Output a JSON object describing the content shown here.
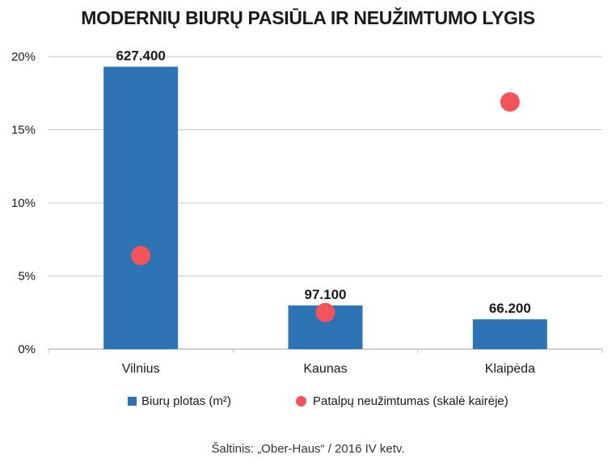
{
  "chart_data": {
    "type": "bar",
    "title": "MODERNIŲ BIURŲ PASIŪLA IR NEUŽIMTUMO LYGIS",
    "categories": [
      "Vilnius",
      "Kaunas",
      "Klaipėda"
    ],
    "series": [
      {
        "name": "Biurų plotas (m²)",
        "type": "bar",
        "values": [
          627400,
          97100,
          66200
        ],
        "value_labels": [
          "627.400",
          "97.100",
          "66.200"
        ],
        "color": "#2e74b5"
      },
      {
        "name": "Patalpų neužimtumas (skalė kairėje)",
        "type": "scatter",
        "values": [
          6.4,
          2.5,
          16.9
        ],
        "color": "#f2545b"
      }
    ],
    "y_axis": {
      "ylim": [
        0,
        20
      ],
      "ticks": [
        0,
        5,
        10,
        15,
        20
      ],
      "tick_labels": [
        "0%",
        "5%",
        "10%",
        "15%",
        "20%"
      ]
    },
    "bar_scale_max": 650000,
    "grid": true,
    "legend_position": "bottom"
  },
  "source": "Šaltinis:  „Ober-Haus“   / 2016 IV ketv."
}
